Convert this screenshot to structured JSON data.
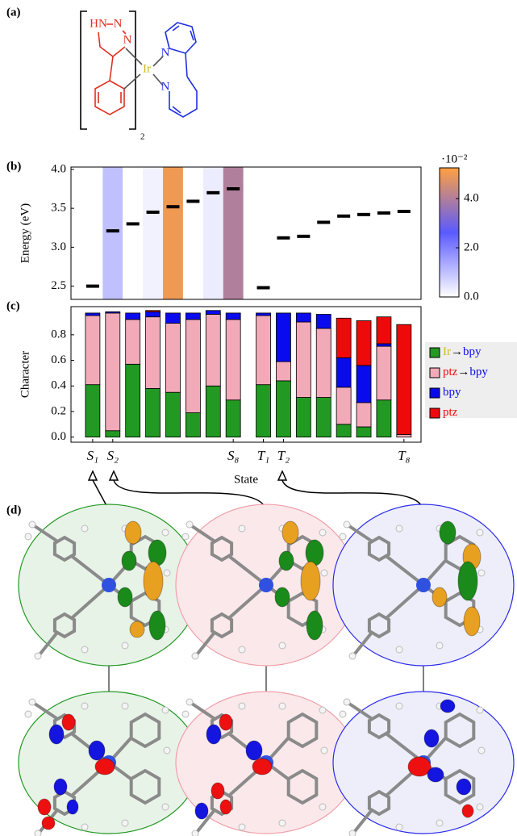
{
  "panel_labels": [
    "(a)",
    "(b)",
    "(c)",
    "(d)"
  ],
  "structure": {
    "atoms": [
      "HN",
      "N",
      "N",
      "Ir",
      "N",
      "N"
    ],
    "count": "2"
  },
  "chart_data": [
    {
      "type": "levels",
      "ylabel": "Energy (eV)",
      "x": [
        1,
        2,
        3,
        4,
        5,
        6,
        7,
        8,
        9.5,
        10.5,
        11.5,
        12.5,
        13.5,
        14.5,
        15.5,
        16.5
      ],
      "values": [
        2.5,
        3.21,
        3.3,
        3.45,
        3.52,
        3.59,
        3.7,
        3.75,
        2.48,
        3.12,
        3.14,
        3.32,
        3.4,
        3.42,
        3.44,
        3.46
      ],
      "color_values": [
        0,
        1.0,
        0,
        0.2,
        5.0,
        0,
        0.3,
        4.0,
        0,
        0,
        0,
        0,
        0,
        0,
        0,
        0
      ],
      "xlim": [
        -0.08,
        17.35
      ],
      "ylim": [
        2.33,
        4.03
      ],
      "yticks": [
        2.5,
        {
          "value": 3,
          "label": "3.0"
        },
        3.5,
        {
          "value": 4,
          "label": "4.0"
        }
      ],
      "colormap": [
        "#ffffff",
        "#5a5aff",
        "#ffa040"
      ],
      "clim": [
        0,
        5.25
      ],
      "cticks": [
        {
          "value": 0,
          "label": "0.0"
        },
        {
          "value": 2,
          "label": "2.0"
        },
        {
          "value": 4,
          "label": "4.0"
        }
      ],
      "clabel": "·10⁻²"
    },
    {
      "type": "stacked_bar",
      "ylabel": "Character",
      "xlabel": "State",
      "x": [
        1,
        2,
        3,
        4,
        5,
        6,
        7,
        8,
        9.5,
        10.5,
        11.5,
        12.5,
        13.5,
        14.5,
        15.5,
        16.5
      ],
      "series": [
        {
          "name": "Ir→bpy",
          "color": "#229922",
          "values": [
            0.41,
            0.05,
            0.57,
            0.38,
            0.35,
            0.19,
            0.4,
            0.29,
            0.41,
            0.44,
            0.31,
            0.31,
            0.1,
            0.08,
            0.29,
            0
          ]
        },
        {
          "name": "ptz→bpy",
          "color": "#f2aab8",
          "values": [
            0.54,
            0.92,
            0.35,
            0.56,
            0.54,
            0.73,
            0.56,
            0.63,
            0.54,
            0.15,
            0.59,
            0.54,
            0.29,
            0.19,
            0.42,
            0.02
          ]
        },
        {
          "name": "bpy",
          "color": "#0a0aee",
          "values": [
            0.02,
            0.01,
            0.05,
            0.04,
            0.08,
            0.05,
            0.03,
            0.05,
            0.02,
            0.38,
            0.07,
            0.11,
            0.23,
            0.29,
            0.02,
            0
          ]
        },
        {
          "name": "ptz",
          "color": "#ee0a0a",
          "values": [
            0,
            0,
            0,
            0.01,
            0,
            0,
            0,
            0,
            0,
            0,
            0,
            0,
            0.31,
            0.35,
            0.21,
            0.86
          ]
        }
      ],
      "xlim": [
        -0.08,
        17.35
      ],
      "ylim": [
        -0.04,
        1.02
      ],
      "yticks": [
        {
          "value": 0,
          "label": "0.0"
        },
        0.2,
        0.4,
        0.6,
        0.8
      ],
      "xticks": [
        {
          "value": 1,
          "label": "S₁"
        },
        {
          "value": 2,
          "label": "S₂"
        },
        {
          "value": 8,
          "label": "S₈"
        },
        {
          "value": 9.5,
          "label": "T₁"
        },
        {
          "value": 10.5,
          "label": "T₂"
        },
        {
          "value": 16.5,
          "label": "T₈"
        }
      ],
      "legend": "right"
    }
  ]
}
